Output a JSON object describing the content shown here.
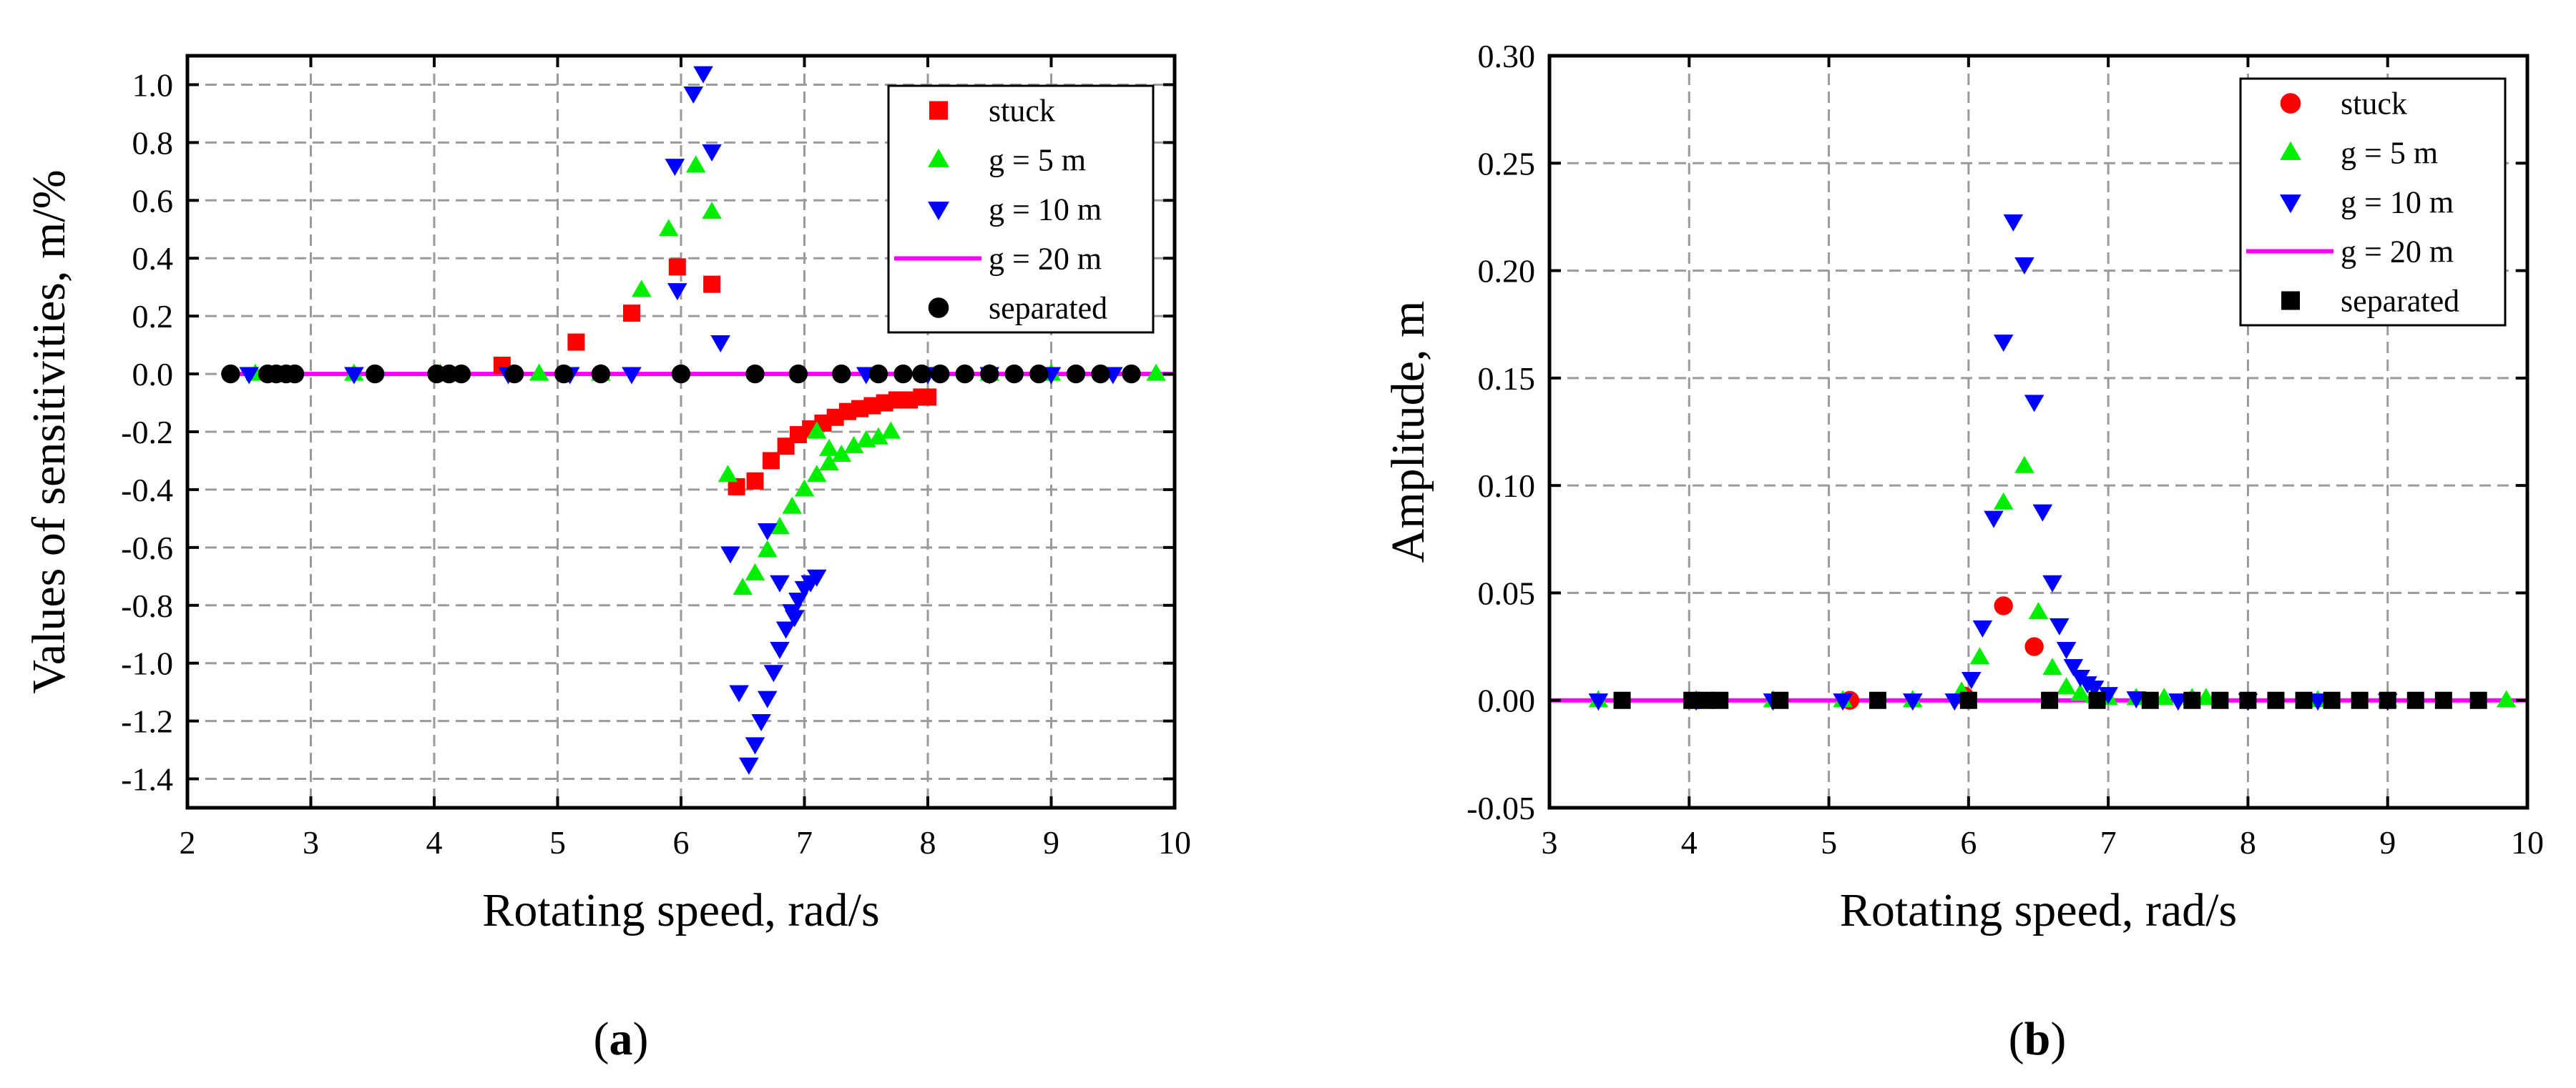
{
  "colors": {
    "stuck": "#ff0000",
    "g5": "#00ee00",
    "g10": "#0000ff",
    "g20": "#ff00ff",
    "separated": "#000000"
  },
  "chart_data": [
    {
      "id": "a",
      "type": "scatter",
      "caption_letter": "a",
      "xlabel": "Rotating speed, rad/s",
      "ylabel": "Values of sensitivities, m/%",
      "xlim": [
        2,
        10
      ],
      "ylim": [
        -1.5,
        1.1
      ],
      "xticks": [
        2,
        3,
        4,
        5,
        6,
        7,
        8,
        9,
        10
      ],
      "xtick_labels": [
        "2",
        "3",
        "4",
        "5",
        "6",
        "7",
        "8",
        "9",
        "10"
      ],
      "yticks": [
        -1.4,
        -1.2,
        -1.0,
        -0.8,
        -0.6,
        -0.4,
        -0.2,
        0.0,
        0.2,
        0.4,
        0.6,
        0.8,
        1.0
      ],
      "ytick_labels": [
        "-1.4",
        "-1.2",
        "-1.0",
        "-0.8",
        "-0.6",
        "-0.4",
        "-0.2",
        "0.0",
        "0.2",
        "0.4",
        "0.6",
        "0.8",
        "1.0"
      ],
      "grid": true,
      "legend_position": "top-right",
      "series": [
        {
          "name": "stuck",
          "key": "stuck",
          "marker": "square",
          "color_key": "stuck",
          "x": [
            4.55,
            5.15,
            5.6,
            5.97,
            6.25,
            6.45,
            6.6,
            6.73,
            6.85,
            6.95,
            7.05,
            7.15,
            7.25,
            7.35,
            7.45,
            7.55,
            7.65,
            7.75,
            7.85,
            7.95,
            8.0
          ],
          "y": [
            0.03,
            0.11,
            0.21,
            0.37,
            0.31,
            -0.39,
            -0.37,
            -0.3,
            -0.25,
            -0.21,
            -0.19,
            -0.17,
            -0.15,
            -0.13,
            -0.12,
            -0.11,
            -0.1,
            -0.09,
            -0.09,
            -0.08,
            -0.08
          ]
        },
        {
          "name": "g = 5 m",
          "key": "g5",
          "marker": "triangle-up",
          "color_key": "g5",
          "x": [
            2.55,
            3.35,
            4.05,
            4.85,
            5.35,
            5.68,
            5.9,
            6.12,
            6.25,
            6.38,
            6.5,
            6.6,
            6.7,
            6.8,
            6.9,
            7.0,
            7.1,
            7.2,
            7.3,
            7.4,
            7.5,
            7.6,
            7.7,
            8.5,
            9.0,
            9.85
          ],
          "y": [
            0.0,
            0.0,
            0.0,
            0.0,
            0.0,
            0.29,
            0.5,
            0.72,
            0.56,
            -0.35,
            -0.74,
            -0.69,
            -0.61,
            -0.53,
            -0.46,
            -0.4,
            -0.35,
            -0.31,
            -0.28,
            -0.25,
            -0.23,
            -0.22,
            -0.2,
            0.0,
            0.0,
            0.0
          ],
          "extra_points": [
            {
              "x": 7.1,
              "y": -0.2
            },
            {
              "x": 7.2,
              "y": -0.26
            }
          ]
        },
        {
          "name": "g = 10 m",
          "key": "g10",
          "marker": "triangle-down",
          "color_key": "g10",
          "x": [
            2.5,
            3.35,
            4.6,
            5.1,
            5.6,
            5.95,
            5.97,
            6.1,
            6.18,
            6.25,
            6.32,
            6.4,
            6.47,
            6.55,
            6.6,
            6.65,
            6.7,
            6.75,
            6.8,
            6.85,
            6.9,
            6.95,
            7.0,
            7.05,
            7.1,
            7.5,
            8.0,
            8.5,
            9.0,
            9.5
          ],
          "y": [
            0.0,
            0.0,
            0.0,
            0.0,
            0.0,
            0.72,
            0.29,
            0.97,
            1.04,
            0.77,
            0.11,
            -0.62,
            -1.1,
            -1.35,
            -1.28,
            -1.2,
            -1.12,
            -1.03,
            -0.95,
            -0.88,
            -0.82,
            -0.78,
            -0.74,
            -0.72,
            -0.7,
            0.0,
            0.0,
            0.0,
            0.0,
            0.0
          ],
          "extra_points": [
            {
              "x": 6.7,
              "y": -0.54
            },
            {
              "x": 6.8,
              "y": -0.72
            },
            {
              "x": 6.92,
              "y": -0.84
            }
          ]
        },
        {
          "name": "g = 20 m",
          "key": "g20",
          "marker": "line",
          "color_key": "g20",
          "x": [
            2.3,
            10.0
          ],
          "y": [
            0.0,
            0.0
          ]
        },
        {
          "name": "separated",
          "key": "separated",
          "marker": "circle",
          "color_key": "separated",
          "x": [
            2.35,
            2.65,
            2.72,
            2.8,
            2.87,
            3.52,
            4.02,
            4.12,
            4.22,
            4.65,
            5.05,
            5.35,
            6.0,
            6.6,
            6.95,
            7.3,
            7.6,
            7.8,
            7.95,
            8.1,
            8.3,
            8.5,
            8.7,
            8.9,
            9.2,
            9.4,
            9.65
          ],
          "y": [
            0,
            0,
            0,
            0,
            0,
            0,
            0,
            0,
            0,
            0,
            0,
            0,
            0,
            0,
            0,
            0,
            0,
            0,
            0,
            0,
            0,
            0,
            0,
            0,
            0,
            0,
            0
          ]
        }
      ]
    },
    {
      "id": "b",
      "type": "scatter",
      "caption_letter": "b",
      "xlabel": "Rotating speed, rad/s",
      "ylabel": "Amplitude, m",
      "xlim": [
        3,
        10
      ],
      "ylim": [
        -0.05,
        0.3
      ],
      "xticks": [
        3,
        4,
        5,
        6,
        7,
        8,
        9,
        10
      ],
      "xtick_labels": [
        "3",
        "4",
        "5",
        "6",
        "7",
        "8",
        "9",
        "10"
      ],
      "yticks": [
        -0.05,
        0.0,
        0.05,
        0.1,
        0.15,
        0.2,
        0.25,
        0.3
      ],
      "ytick_labels": [
        "-0.05",
        "0.00",
        "0.05",
        "0.10",
        "0.15",
        "0.20",
        "0.25",
        "0.30"
      ],
      "grid": true,
      "legend_position": "top-right",
      "series": [
        {
          "name": "stuck",
          "key": "stuck",
          "marker": "circle",
          "color_key": "stuck",
          "x": [
            5.15,
            5.97,
            6.25,
            6.47
          ],
          "y": [
            0.0,
            0.002,
            0.044,
            0.025
          ]
        },
        {
          "name": "g = 5 m",
          "key": "g5",
          "marker": "triangle-up",
          "color_key": "g5",
          "x": [
            3.35,
            4.05,
            4.6,
            5.1,
            5.6,
            5.95,
            6.08,
            6.25,
            6.4,
            6.5,
            6.6,
            6.7,
            6.8,
            6.9,
            7.0,
            7.2,
            7.4,
            7.6,
            7.7,
            8.5,
            9.0,
            9.85
          ],
          "y": [
            0.0,
            0.0,
            0.0,
            0.0,
            0.0,
            0.004,
            0.02,
            0.092,
            0.109,
            0.041,
            0.015,
            0.006,
            0.003,
            0.002,
            0.001,
            0.001,
            0.001,
            0.001,
            0.001,
            0.0,
            0.0,
            0.0
          ]
        },
        {
          "name": "g = 10 m",
          "key": "g10",
          "marker": "triangle-down",
          "color_key": "g10",
          "x": [
            3.35,
            4.05,
            4.6,
            5.1,
            5.6,
            5.9,
            6.02,
            6.1,
            6.18,
            6.25,
            6.32,
            6.4,
            6.47,
            6.53,
            6.6,
            6.65,
            6.7,
            6.75,
            6.8,
            6.85,
            6.9,
            7.0,
            7.2,
            7.5,
            8.0,
            8.5,
            9.0
          ],
          "y": [
            0.0,
            0.0,
            0.0,
            0.0,
            0.0,
            0.0,
            0.01,
            0.034,
            0.085,
            0.167,
            0.223,
            0.203,
            0.139,
            0.088,
            0.055,
            0.035,
            0.024,
            0.016,
            0.011,
            0.008,
            0.006,
            0.003,
            0.001,
            0.0,
            0.0,
            0.0,
            0.0
          ]
        },
        {
          "name": "g = 20 m",
          "key": "g20",
          "marker": "line",
          "color_key": "g20",
          "x": [
            3.0,
            10.0
          ],
          "y": [
            0.0,
            0.0
          ]
        },
        {
          "name": "separated",
          "key": "separated",
          "marker": "square",
          "color_key": "separated",
          "x": [
            3.52,
            4.02,
            4.12,
            4.22,
            4.65,
            5.35,
            6.0,
            6.58,
            6.92,
            7.3,
            7.6,
            7.8,
            8.0,
            8.2,
            8.4,
            8.6,
            8.8,
            9.0,
            9.2,
            9.4,
            9.65
          ],
          "y": [
            0,
            0,
            0,
            0,
            0,
            0,
            0,
            0,
            0,
            0,
            0,
            0,
            0,
            0,
            0,
            0,
            0,
            0,
            0,
            0,
            0
          ]
        }
      ]
    }
  ]
}
